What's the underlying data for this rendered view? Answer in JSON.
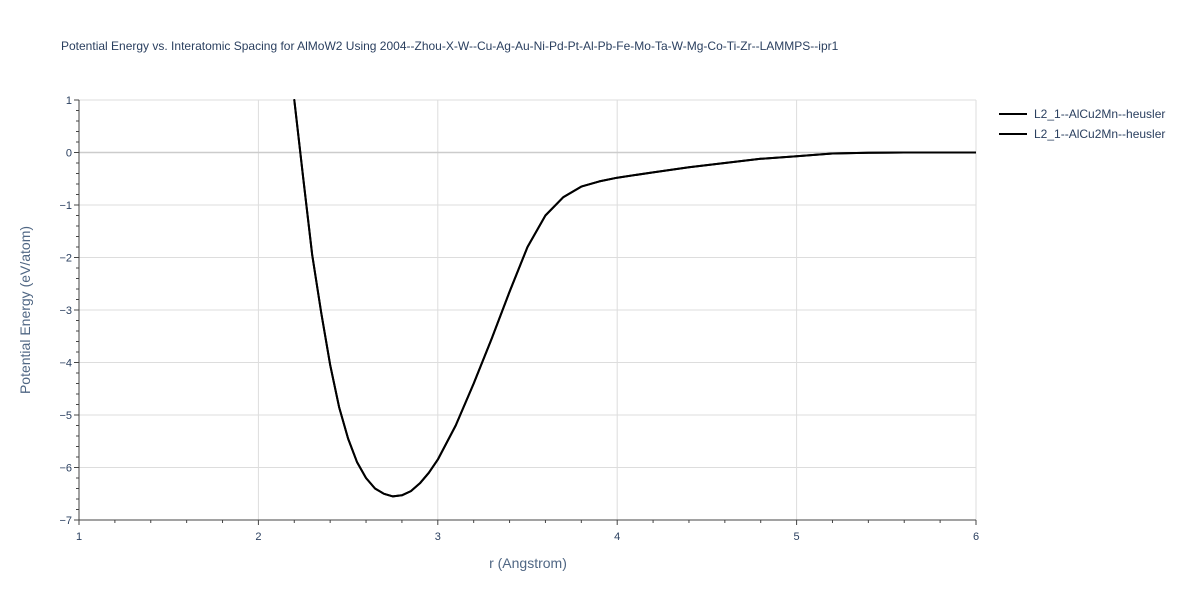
{
  "chart_data": {
    "type": "line",
    "title": "Potential Energy vs. Interatomic Spacing for AlMoW2 Using 2004--Zhou-X-W--Cu-Ag-Au-Ni-Pd-Pt-Al-Pb-Fe-Mo-Ta-W-Mg-Co-Ti-Zr--LAMMPS--ipr1",
    "xlabel": "r (Angstrom)",
    "ylabel": "Potential Energy (eV/atom)",
    "xlim": [
      1,
      6
    ],
    "ylim": [
      -7,
      1
    ],
    "x_ticks": [
      1,
      2,
      3,
      4,
      5,
      6
    ],
    "y_ticks": [
      1,
      0,
      -1,
      -2,
      -3,
      -4,
      -5,
      -6,
      -7
    ],
    "x_tick_labels": [
      "1",
      "2",
      "3",
      "4",
      "5",
      "6"
    ],
    "y_tick_labels": [
      "1",
      "0",
      "−1",
      "−2",
      "−3",
      "−4",
      "−5",
      "−6",
      "−7"
    ],
    "grid": true,
    "legend_position": "top-right",
    "series": [
      {
        "name": "L2_1--AlCu2Mn--heusler",
        "color": "#000000",
        "x": [
          2.2,
          2.25,
          2.3,
          2.35,
          2.4,
          2.45,
          2.5,
          2.55,
          2.6,
          2.65,
          2.7,
          2.75,
          2.8,
          2.85,
          2.9,
          2.95,
          3.0,
          3.1,
          3.2,
          3.3,
          3.4,
          3.5,
          3.6,
          3.7,
          3.8,
          3.9,
          4.0,
          4.2,
          4.4,
          4.6,
          4.8,
          5.0,
          5.2,
          5.4,
          5.6,
          5.8,
          6.0
        ],
        "y": [
          1.0,
          -0.5,
          -1.95,
          -3.05,
          -4.05,
          -4.85,
          -5.45,
          -5.9,
          -6.2,
          -6.4,
          -6.5,
          -6.55,
          -6.53,
          -6.45,
          -6.3,
          -6.1,
          -5.85,
          -5.2,
          -4.4,
          -3.55,
          -2.65,
          -1.8,
          -1.2,
          -0.85,
          -0.65,
          -0.55,
          -0.48,
          -0.38,
          -0.28,
          -0.2,
          -0.12,
          -0.07,
          -0.02,
          -0.005,
          0.0,
          0.0,
          0.0
        ]
      },
      {
        "name": "L2_1--AlCu2Mn--heusler",
        "color": "#000000",
        "x": [
          2.2,
          2.25,
          2.3,
          2.35,
          2.4,
          2.45,
          2.5,
          2.55,
          2.6,
          2.65,
          2.7,
          2.75,
          2.8,
          2.85,
          2.9,
          2.95,
          3.0,
          3.1,
          3.2,
          3.3,
          3.4,
          3.5,
          3.6,
          3.7,
          3.8,
          3.9,
          4.0,
          4.2,
          4.4,
          4.6,
          4.8,
          5.0,
          5.2,
          5.4,
          5.6,
          5.8,
          6.0
        ],
        "y": [
          1.0,
          -0.5,
          -1.95,
          -3.05,
          -4.05,
          -4.85,
          -5.45,
          -5.9,
          -6.2,
          -6.4,
          -6.5,
          -6.55,
          -6.53,
          -6.45,
          -6.3,
          -6.1,
          -5.85,
          -5.2,
          -4.4,
          -3.55,
          -2.65,
          -1.8,
          -1.2,
          -0.85,
          -0.65,
          -0.55,
          -0.48,
          -0.38,
          -0.28,
          -0.2,
          -0.12,
          -0.07,
          -0.02,
          -0.005,
          0.0,
          0.0,
          0.0
        ]
      }
    ]
  }
}
